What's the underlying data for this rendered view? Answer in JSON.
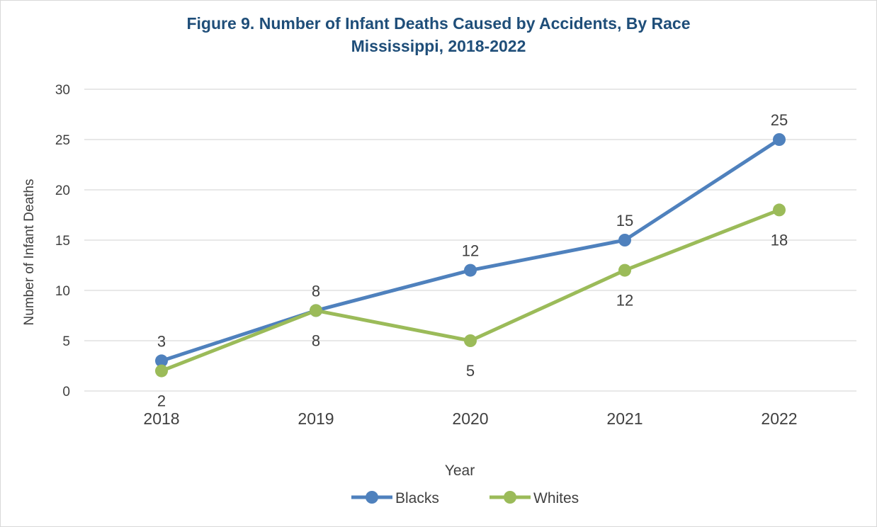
{
  "chart_data": {
    "type": "line",
    "title_line1": "Figure 9. Number of Infant Deaths Caused by Accidents, By Race",
    "title_line2": "Mississippi, 2018-2022",
    "xlabel": "Year",
    "ylabel": "Number of Infant Deaths",
    "categories": [
      "2018",
      "2019",
      "2020",
      "2021",
      "2022"
    ],
    "ylim": [
      0,
      30
    ],
    "yticks": [
      "0",
      "5",
      "10",
      "15",
      "20",
      "25",
      "30"
    ],
    "grid": true,
    "legend_position": "bottom",
    "series": [
      {
        "name": "Blacks",
        "color": "#4f81bd",
        "values": [
          3,
          8,
          12,
          15,
          25
        ],
        "label_position": "above"
      },
      {
        "name": "Whites",
        "color": "#9bbb59",
        "values": [
          2,
          8,
          5,
          12,
          18
        ],
        "label_position": "below"
      }
    ]
  }
}
